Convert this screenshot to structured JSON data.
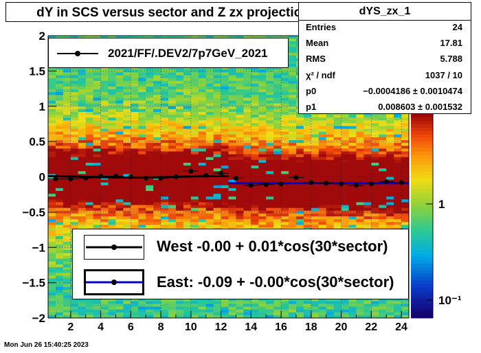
{
  "title": "dY in SCS versus sector and Z zx projection",
  "stats": {
    "name": "dYS_zx_1",
    "rows": [
      {
        "k": "Entries",
        "v": "24"
      },
      {
        "k": "Mean",
        "v": "17.81"
      },
      {
        "k": "RMS",
        "v": "5.788"
      },
      {
        "k": "χ² / ndf",
        "v": "1037 / 10"
      },
      {
        "k": "p0",
        "v": "−0.0004186 ± 0.0010474"
      },
      {
        "k": "p1",
        "v": "0.008603 ± 0.001532"
      }
    ]
  },
  "legend_top": {
    "label": "2021/FF/.DEV2/7p7GeV_2021"
  },
  "legend_bottom": {
    "west": "West -0.00 +  0.01*cos(30*sector)",
    "east": "East: -0.09 + -0.00*cos(30*sector)"
  },
  "datestamp": "Mon Jun 26 15:40:25 2023",
  "colors": {
    "west_fit": "#000000",
    "east_fit": "#0000cc",
    "points": "#000000"
  },
  "chart_data": {
    "type": "heatmap",
    "title": "dY in SCS versus sector and Z zx projection",
    "xlabel": "",
    "ylabel": "",
    "xlim": [
      0.5,
      24.5
    ],
    "ylim": [
      -2,
      2
    ],
    "xticks": [
      "2",
      "4",
      "6",
      "8",
      "10",
      "12",
      "14",
      "16",
      "18",
      "20",
      "22",
      "24"
    ],
    "yticks": [
      "−2",
      "−1.5",
      "−1",
      "−0.5",
      "0",
      "0.5",
      "1",
      "1.5",
      "2"
    ],
    "colorbar_ticks": [
      "1",
      "10⁻¹"
    ],
    "colorbar_scale": "log",
    "points": {
      "x": [
        1,
        2,
        3,
        4,
        5,
        6,
        7,
        8,
        9,
        10,
        11,
        12,
        13,
        14,
        15,
        16,
        17,
        18,
        19,
        20,
        21,
        22,
        23,
        24
      ],
      "y": [
        -0.03,
        -0.03,
        -0.02,
        0.01,
        0.01,
        0.0,
        -0.02,
        -0.02,
        0.0,
        0.08,
        0.02,
        0.05,
        -0.02,
        -0.12,
        -0.11,
        -0.1,
        -0.01,
        -0.08,
        -0.09,
        -0.1,
        -0.12,
        -0.1,
        -0.07,
        -0.08
      ]
    },
    "fits": [
      {
        "name": "West",
        "x_range": [
          0.5,
          12.5
        ],
        "p0": -0.0,
        "p1": 0.01
      },
      {
        "name": "East",
        "x_range": [
          12.5,
          24.5
        ],
        "p0": -0.09,
        "p1": -0.0
      }
    ]
  }
}
